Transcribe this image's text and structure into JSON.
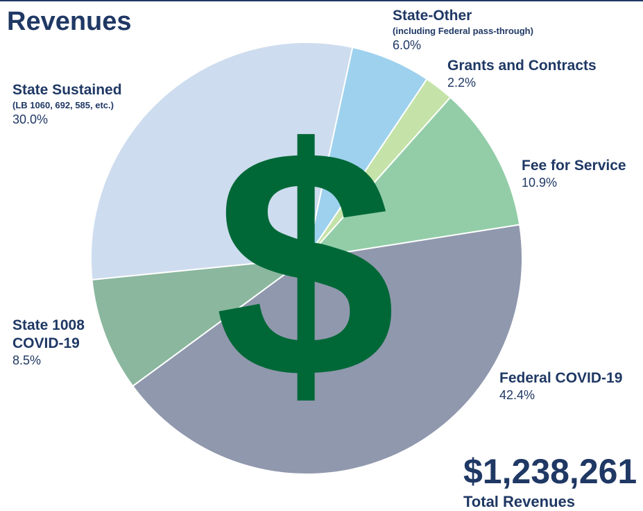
{
  "chart_data": {
    "type": "pie",
    "title": "Revenues",
    "icon": "$",
    "categories": [
      "State-Other",
      "Grants and Contracts",
      "Fee for Service",
      "Federal COVID-19",
      "State 1008 COVID-19",
      "State Sustained"
    ],
    "sublabels": [
      "(including Federal pass-through)",
      null,
      null,
      null,
      null,
      "(LB 1060, 692, 585, etc.)"
    ],
    "values": [
      6.0,
      2.2,
      10.9,
      42.4,
      8.5,
      30.0
    ],
    "value_labels": [
      "6.0%",
      "2.2%",
      "10.9%",
      "42.4%",
      "8.5%",
      "30.0%"
    ],
    "colors": [
      "#9dd1ee",
      "#c5e3a8",
      "#92cda8",
      "#9098ad",
      "#8ab79e",
      "#cddcee"
    ],
    "total": "$1,238,261",
    "total_caption": "Total Revenues"
  }
}
